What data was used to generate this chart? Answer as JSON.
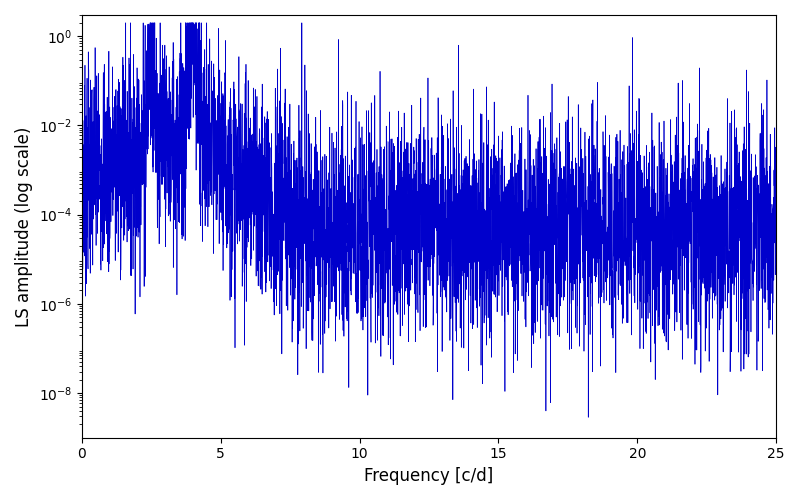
{
  "title": "",
  "xlabel": "Frequency [c/d]",
  "ylabel": "LS amplitude (log scale)",
  "xlim": [
    0,
    25
  ],
  "ylim": [
    1e-09,
    3
  ],
  "line_color": "#0000cc",
  "line_width": 0.5,
  "background_color": "#ffffff",
  "figsize": [
    8.0,
    5.0
  ],
  "dpi": 100,
  "seed": 7,
  "n_points": 5000,
  "noise_floor_log": -4.3,
  "noise_std_log": 1.2,
  "yticks": [
    1e-08,
    1e-06,
    0.0001,
    0.01,
    1.0
  ]
}
